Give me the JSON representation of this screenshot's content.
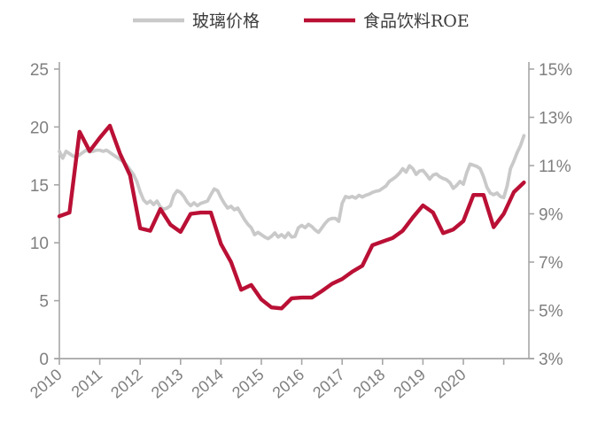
{
  "legend": [
    {
      "label": "玻璃价格",
      "color": "#c9c9c9"
    },
    {
      "label": "食品饮料ROE",
      "color": "#ba1035"
    }
  ],
  "chart_data": {
    "type": "line",
    "title": "",
    "grid": false,
    "legend_position": "top",
    "x_axis": {
      "labels": [
        "2010",
        "2011",
        "2012",
        "2013",
        "2014",
        "2015",
        "2016",
        "2017",
        "2018",
        "2019",
        "2020"
      ],
      "num_ticks": 12,
      "x_start_year": 2010,
      "x_end_year": 2021.6
    },
    "left_axis": {
      "min": 0,
      "max": 25,
      "ticks": [
        0,
        5,
        10,
        15,
        20,
        25
      ]
    },
    "right_axis": {
      "min": 3,
      "max": 15,
      "ticks": [
        3,
        5,
        7,
        9,
        11,
        13,
        15
      ],
      "suffix": "%"
    },
    "series": [
      {
        "name": "玻璃价格",
        "axis": "left",
        "color": "#c9c9c9",
        "width": 3.8,
        "frequency": "monthly",
        "start_year": 2010,
        "points_per_year": 12,
        "values": [
          17.9,
          17.3,
          17.9,
          17.7,
          17.5,
          17.4,
          17.6,
          17.8,
          18.0,
          17.85,
          17.9,
          18.0,
          18.0,
          17.9,
          18.0,
          17.8,
          17.6,
          17.4,
          17.2,
          17.0,
          16.7,
          16.3,
          15.9,
          15.3,
          14.4,
          13.7,
          13.4,
          13.6,
          13.3,
          13.6,
          13.1,
          12.9,
          13.0,
          13.2,
          14.1,
          14.5,
          14.35,
          14.0,
          13.5,
          13.2,
          13.45,
          13.2,
          13.4,
          13.5,
          13.6,
          14.15,
          14.65,
          14.5,
          13.9,
          13.4,
          13.0,
          13.15,
          12.85,
          13.0,
          12.5,
          12.0,
          11.6,
          11.3,
          10.7,
          10.9,
          10.7,
          10.5,
          10.35,
          10.55,
          10.85,
          10.5,
          10.7,
          10.45,
          10.85,
          10.5,
          10.55,
          11.3,
          11.5,
          11.3,
          11.6,
          11.4,
          11.1,
          10.9,
          11.3,
          11.7,
          12.0,
          12.1,
          12.1,
          11.85,
          13.4,
          14.0,
          13.9,
          14.0,
          13.85,
          14.1,
          13.95,
          14.1,
          14.2,
          14.35,
          14.45,
          14.5,
          14.7,
          14.9,
          15.3,
          15.5,
          15.7,
          16.0,
          16.4,
          16.1,
          16.65,
          16.4,
          15.9,
          16.2,
          16.25,
          15.9,
          15.5,
          15.85,
          15.95,
          15.7,
          15.55,
          15.45,
          15.2,
          14.7,
          14.95,
          15.3,
          15.05,
          16.05,
          16.8,
          16.7,
          16.6,
          16.4,
          15.7,
          14.8,
          14.3,
          14.15,
          14.3,
          14.0,
          13.9,
          14.9,
          16.4,
          17.05,
          17.8,
          18.4,
          19.25
        ]
      },
      {
        "name": "食品饮料ROE",
        "axis": "right",
        "color": "#ba1035",
        "width": 4.4,
        "frequency": "quarterly",
        "start_year": 2010,
        "points_per_year": 4,
        "unit": "%",
        "values": [
          8.9,
          9.05,
          12.4,
          11.6,
          12.15,
          12.65,
          11.5,
          10.6,
          8.4,
          8.3,
          9.2,
          8.55,
          8.25,
          9.0,
          9.05,
          9.05,
          7.75,
          7.0,
          5.85,
          6.05,
          5.45,
          5.12,
          5.08,
          5.5,
          5.53,
          5.53,
          5.8,
          6.1,
          6.3,
          6.6,
          6.85,
          7.7,
          7.85,
          8.0,
          8.3,
          8.85,
          9.35,
          9.05,
          8.2,
          8.35,
          8.7,
          9.78,
          9.78,
          8.45,
          9.0,
          9.9,
          10.3
        ]
      }
    ]
  }
}
